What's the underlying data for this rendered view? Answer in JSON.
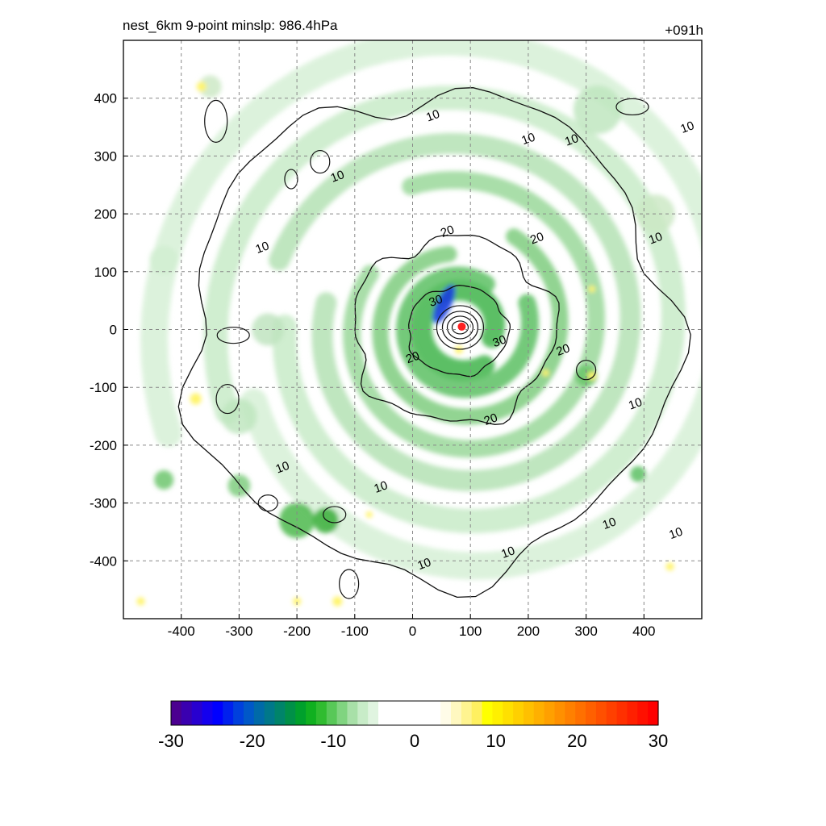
{
  "header": {
    "title": "nest_6km  9-point minslp: 986.4hPa",
    "forecast_hour": "+091h"
  },
  "chart_data": [
    {
      "type": "heatmap",
      "title": "nest_6km  9-point minslp: 986.4hPa",
      "annotation": "+091h",
      "xlim": [
        -500,
        500
      ],
      "ylim": [
        -500,
        500
      ],
      "x_ticks": [
        -400,
        -300,
        -200,
        -100,
        0,
        100,
        200,
        300,
        400
      ],
      "y_ticks": [
        400,
        300,
        200,
        100,
        0,
        -100,
        -200,
        -300,
        -400
      ],
      "grid": true,
      "shading_description": "filled field, mostly negative (green) in spiral bands around center, small positive (yellow) patches",
      "storm_center_marker": {
        "x": 85,
        "y": 5,
        "color": "#ff2020"
      },
      "contour_labels": [
        {
          "value": "10",
          "x": 35,
          "y": 370
        },
        {
          "value": "10",
          "x": 200,
          "y": 330
        },
        {
          "value": "10",
          "x": 275,
          "y": 328
        },
        {
          "value": "10",
          "x": 475,
          "y": 350
        },
        {
          "value": "10",
          "x": -130,
          "y": 265
        },
        {
          "value": "10",
          "x": -260,
          "y": 142
        },
        {
          "value": "10",
          "x": 420,
          "y": 158
        },
        {
          "value": "10",
          "x": 385,
          "y": -128
        },
        {
          "value": "10",
          "x": -225,
          "y": -238
        },
        {
          "value": "10",
          "x": -55,
          "y": -272
        },
        {
          "value": "10",
          "x": 340,
          "y": -335
        },
        {
          "value": "10",
          "x": 455,
          "y": -352
        },
        {
          "value": "10",
          "x": 165,
          "y": -385
        },
        {
          "value": "10",
          "x": 20,
          "y": -405
        },
        {
          "value": "20",
          "x": 60,
          "y": 170
        },
        {
          "value": "20",
          "x": 215,
          "y": 158
        },
        {
          "value": "20",
          "x": 0,
          "y": -48
        },
        {
          "value": "20",
          "x": 260,
          "y": -35
        },
        {
          "value": "20",
          "x": 135,
          "y": -155
        },
        {
          "value": "30",
          "x": 40,
          "y": 50
        },
        {
          "value": "30",
          "x": 150,
          "y": -20
        }
      ]
    },
    {
      "type": "heatmap",
      "title": "",
      "colorbar": {
        "min": -30,
        "max": 30,
        "tick_labels": [
          "-30",
          "-20",
          "-10",
          "0",
          "10",
          "20",
          "30"
        ],
        "colors": [
          "#4b0090",
          "#3a00b0",
          "#2800d0",
          "#1400ee",
          "#0000ff",
          "#0020ee",
          "#0040dd",
          "#0058c8",
          "#006aa8",
          "#00788a",
          "#00846a",
          "#009048",
          "#00a02c",
          "#10b020",
          "#30bc30",
          "#58c858",
          "#80d480",
          "#a8e0a8",
          "#c8ecc8",
          "#e0f4e0",
          "#ffffff",
          "#ffffff",
          "#ffffff",
          "#ffffff",
          "#ffffff",
          "#ffffff",
          "#fffce8",
          "#fff8c0",
          "#fff490",
          "#fff060",
          "#ffff00",
          "#fff000",
          "#ffe000",
          "#ffd000",
          "#ffc000",
          "#ffb000",
          "#ffa000",
          "#ff9000",
          "#ff8000",
          "#ff7000",
          "#ff6000",
          "#ff5000",
          "#ff4000",
          "#ff3000",
          "#ff2000",
          "#ff1000",
          "#ff0000"
        ]
      }
    }
  ]
}
